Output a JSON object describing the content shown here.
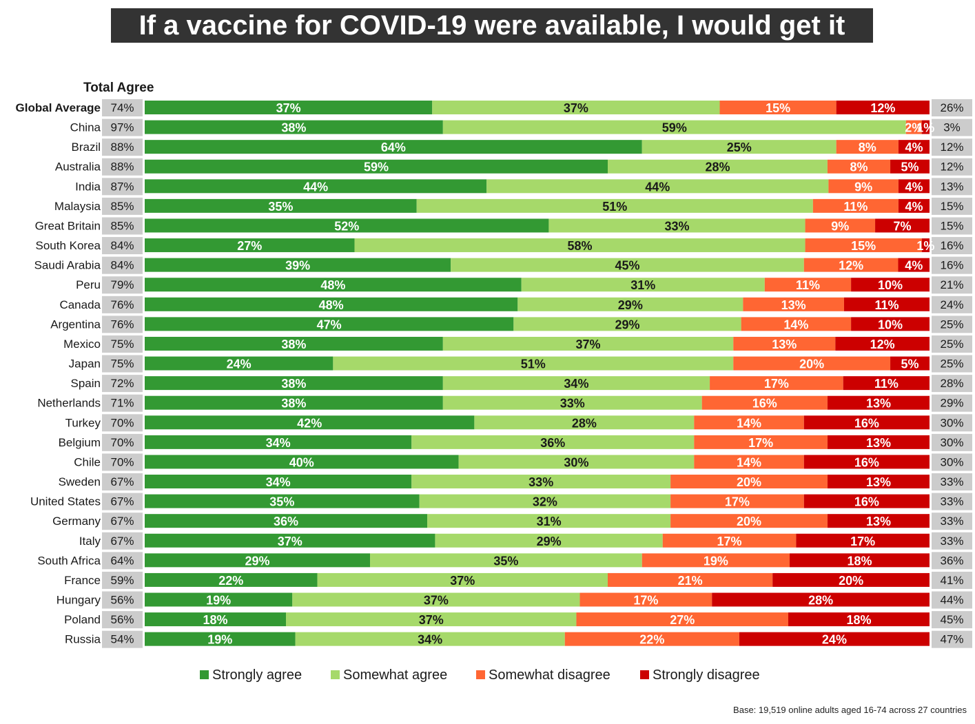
{
  "chart_data": {
    "type": "bar",
    "orientation": "horizontal",
    "stacked": true,
    "title": "If a vaccine for COVID-19 were available, I would get it",
    "left_column_header": "Total Agree",
    "xlim": [
      0,
      100
    ],
    "grid": false,
    "legend_position": "bottom",
    "categories": [
      "Global Average",
      "China",
      "Brazil",
      "Australia",
      "India",
      "Malaysia",
      "Great Britain",
      "South Korea",
      "Saudi Arabia",
      "Peru",
      "Canada",
      "Argentina",
      "Mexico",
      "Japan",
      "Spain",
      "Netherlands",
      "Turkey",
      "Belgium",
      "Chile",
      "Sweden",
      "United States",
      "Germany",
      "Italy",
      "South Africa",
      "France",
      "Hungary",
      "Poland",
      "Russia"
    ],
    "total_agree": [
      "74%",
      "97%",
      "88%",
      "88%",
      "87%",
      "85%",
      "85%",
      "84%",
      "84%",
      "79%",
      "76%",
      "76%",
      "75%",
      "75%",
      "72%",
      "71%",
      "70%",
      "70%",
      "70%",
      "67%",
      "67%",
      "67%",
      "67%",
      "64%",
      "59%",
      "56%",
      "56%",
      "54%"
    ],
    "total_disagree": [
      "26%",
      "3%",
      "12%",
      "12%",
      "13%",
      "15%",
      "15%",
      "16%",
      "16%",
      "21%",
      "24%",
      "25%",
      "25%",
      "25%",
      "28%",
      "29%",
      "30%",
      "30%",
      "30%",
      "33%",
      "33%",
      "33%",
      "33%",
      "36%",
      "41%",
      "44%",
      "45%",
      "47%"
    ],
    "series": [
      {
        "name": "Strongly agree",
        "color": "#339933",
        "label_color": "#ffffff",
        "values": [
          37,
          38,
          64,
          59,
          44,
          35,
          52,
          27,
          39,
          48,
          48,
          47,
          38,
          24,
          38,
          38,
          42,
          34,
          40,
          34,
          35,
          36,
          37,
          29,
          22,
          19,
          18,
          19
        ]
      },
      {
        "name": "Somewhat agree",
        "color": "#a6d96a",
        "label_color": "#1a1a1a",
        "values": [
          37,
          59,
          25,
          28,
          44,
          51,
          33,
          58,
          45,
          31,
          29,
          29,
          37,
          51,
          34,
          33,
          28,
          36,
          30,
          33,
          32,
          31,
          29,
          35,
          37,
          37,
          37,
          34
        ]
      },
      {
        "name": "Somewhat disagree",
        "color": "#ff6633",
        "label_color": "#ffffff",
        "values": [
          15,
          2,
          8,
          8,
          9,
          11,
          9,
          15,
          12,
          11,
          13,
          14,
          13,
          20,
          17,
          16,
          14,
          17,
          14,
          20,
          17,
          20,
          17,
          19,
          21,
          17,
          27,
          22
        ]
      },
      {
        "name": "Strongly disagree",
        "color": "#cc0000",
        "label_color": "#ffffff",
        "values": [
          12,
          1,
          4,
          5,
          4,
          4,
          7,
          1,
          4,
          10,
          11,
          10,
          12,
          5,
          11,
          13,
          16,
          13,
          16,
          13,
          16,
          13,
          17,
          18,
          20,
          28,
          18,
          24
        ]
      }
    ],
    "footnote": "Base: 19,519 online adults aged 16-74 across 27 countries"
  }
}
